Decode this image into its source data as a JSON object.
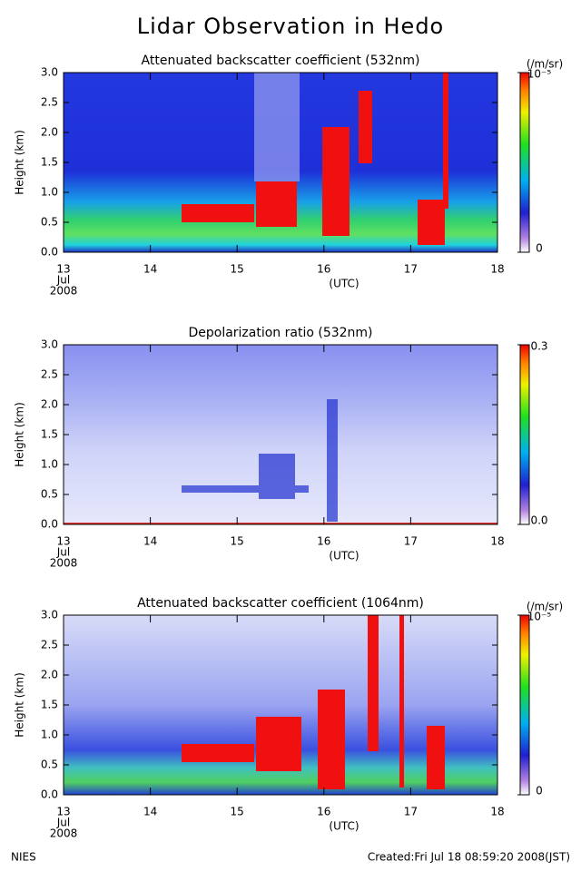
{
  "title": "Lidar Observation in Hedo",
  "chart_data": [
    {
      "type": "heatmap",
      "title": "Attenuated backscatter coefficient (532nm)",
      "xlabel": "(UTC)",
      "ylabel": "Height (km)",
      "xlim": [
        13,
        18
      ],
      "xticks": [
        13,
        14,
        15,
        16,
        17,
        18
      ],
      "x_sub_labels": [
        "Jul",
        "2008"
      ],
      "ylim": [
        0,
        3
      ],
      "yticks": [
        {
          "value": 0,
          "label": "0.0"
        },
        {
          "value": 0.5,
          "label": "0.5"
        },
        {
          "value": 1,
          "label": "1.0"
        },
        {
          "value": 1.5,
          "label": "1.5"
        },
        {
          "value": 2,
          "label": "2.0"
        },
        {
          "value": 2.5,
          "label": "2.5"
        },
        {
          "value": 3,
          "label": "3.0"
        }
      ],
      "colorbar": {
        "label": "(/m/sr)",
        "lim": [
          0,
          1e-05
        ],
        "ticks": [
          {
            "value": 0,
            "label": "0"
          },
          {
            "value": 1e-05,
            "label": "10⁻⁵"
          }
        ]
      }
    },
    {
      "type": "heatmap",
      "title": "Depolarization ratio (532nm)",
      "xlabel": "(UTC)",
      "ylabel": "Height (km)",
      "xlim": [
        13,
        18
      ],
      "xticks": [
        13,
        14,
        15,
        16,
        17,
        18
      ],
      "x_sub_labels": [
        "Jul",
        "2008"
      ],
      "ylim": [
        0,
        3
      ],
      "yticks": [
        {
          "value": 0,
          "label": "0.0"
        },
        {
          "value": 0.5,
          "label": "0.5"
        },
        {
          "value": 1,
          "label": "1.0"
        },
        {
          "value": 1.5,
          "label": "1.5"
        },
        {
          "value": 2,
          "label": "2.0"
        },
        {
          "value": 2.5,
          "label": "2.5"
        },
        {
          "value": 3,
          "label": "3.0"
        }
      ],
      "colorbar": {
        "lim": [
          0,
          0.3
        ],
        "ticks": [
          {
            "value": 0,
            "label": "0.0"
          },
          {
            "value": 0.3,
            "label": "0.3"
          }
        ]
      }
    },
    {
      "type": "heatmap",
      "title": "Attenuated backscatter coefficient (1064nm)",
      "xlabel": "(UTC)",
      "ylabel": "Height (km)",
      "xlim": [
        13,
        18
      ],
      "xticks": [
        13,
        14,
        15,
        16,
        17,
        18
      ],
      "x_sub_labels": [
        "Jul",
        "2008"
      ],
      "ylim": [
        0,
        3
      ],
      "yticks": [
        {
          "value": 0,
          "label": "0.0"
        },
        {
          "value": 0.5,
          "label": "0.5"
        },
        {
          "value": 1,
          "label": "1.0"
        },
        {
          "value": 1.5,
          "label": "1.5"
        },
        {
          "value": 2,
          "label": "2.0"
        },
        {
          "value": 2.5,
          "label": "2.5"
        },
        {
          "value": 3,
          "label": "3.0"
        }
      ],
      "colorbar": {
        "label": "(/m/sr)",
        "lim": [
          0,
          1e-05
        ],
        "ticks": [
          {
            "value": 0,
            "label": "0"
          },
          {
            "value": 1e-05,
            "label": "10⁻⁵"
          }
        ]
      }
    }
  ],
  "footer": {
    "left": "NIES",
    "right": "Created:Fri Jul 18 08:59:20 2008(JST)"
  }
}
